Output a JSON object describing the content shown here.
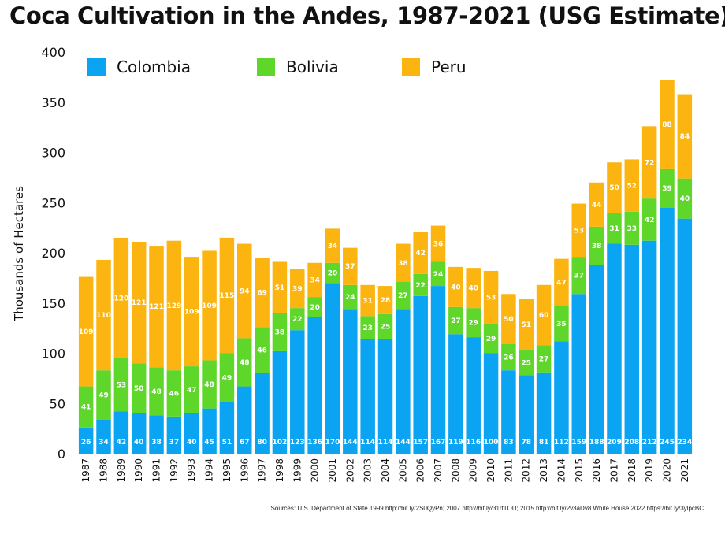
{
  "title": "Coca Cultivation in the Andes, 1987-2021 (USG Estimate)",
  "source": "Sources: U.S. Department of State 1999 http://bit.ly/2S0QyPn; 2007 http://bit.ly/31rtTOU; 2015 http://bit.ly/2v3aDv8 White House 2022 https://bit.ly/3ylpcBC",
  "chart_data": {
    "type": "bar",
    "stacked": true,
    "title": "Coca Cultivation in the Andes, 1987-2021 (USG Estimate)",
    "xlabel": "",
    "ylabel": "Thousands of Hectares",
    "ylim": [
      0,
      400
    ],
    "yticks": [
      0,
      50,
      100,
      150,
      200,
      250,
      300,
      350,
      400
    ],
    "grid": false,
    "legend_position": "top-left",
    "categories": [
      "1987",
      "1988",
      "1989",
      "1990",
      "1991",
      "1992",
      "1993",
      "1994",
      "1995",
      "1996",
      "1997",
      "1998",
      "1999",
      "2000",
      "2001",
      "2002",
      "2003",
      "2004",
      "2005",
      "2006",
      "2007",
      "2008",
      "2009",
      "2010",
      "2011",
      "2012",
      "2013",
      "2014",
      "2015",
      "2016",
      "2017",
      "2018",
      "2019",
      "2020",
      "2021"
    ],
    "series": [
      {
        "name": "Colombia",
        "color": "#0aa4f3",
        "values": [
          26,
          34,
          42,
          40,
          38,
          37,
          40,
          45,
          51,
          67,
          80,
          102,
          123,
          136,
          170,
          144,
          114,
          114,
          144,
          157,
          167,
          119,
          116,
          100,
          83,
          78,
          81,
          112,
          159,
          188,
          209,
          208,
          212,
          245,
          234
        ]
      },
      {
        "name": "Bolivia",
        "color": "#5fd62a",
        "values": [
          41,
          49,
          53,
          50,
          48,
          46,
          47,
          48,
          49,
          48,
          46,
          38,
          22,
          20,
          20,
          24,
          23,
          25,
          27,
          22,
          24,
          27,
          29,
          29,
          26,
          25,
          27,
          35,
          37,
          38,
          31,
          33,
          42,
          39,
          40
        ]
      },
      {
        "name": "Peru",
        "color": "#fbb410",
        "values": [
          109,
          110,
          120,
          121,
          121,
          129,
          109,
          109,
          115,
          94,
          69,
          51,
          39,
          34,
          34,
          37,
          31,
          28,
          38,
          42,
          36,
          40,
          40,
          53,
          50,
          51,
          60,
          47,
          53,
          44,
          50,
          52,
          72,
          88,
          84
        ]
      }
    ]
  }
}
